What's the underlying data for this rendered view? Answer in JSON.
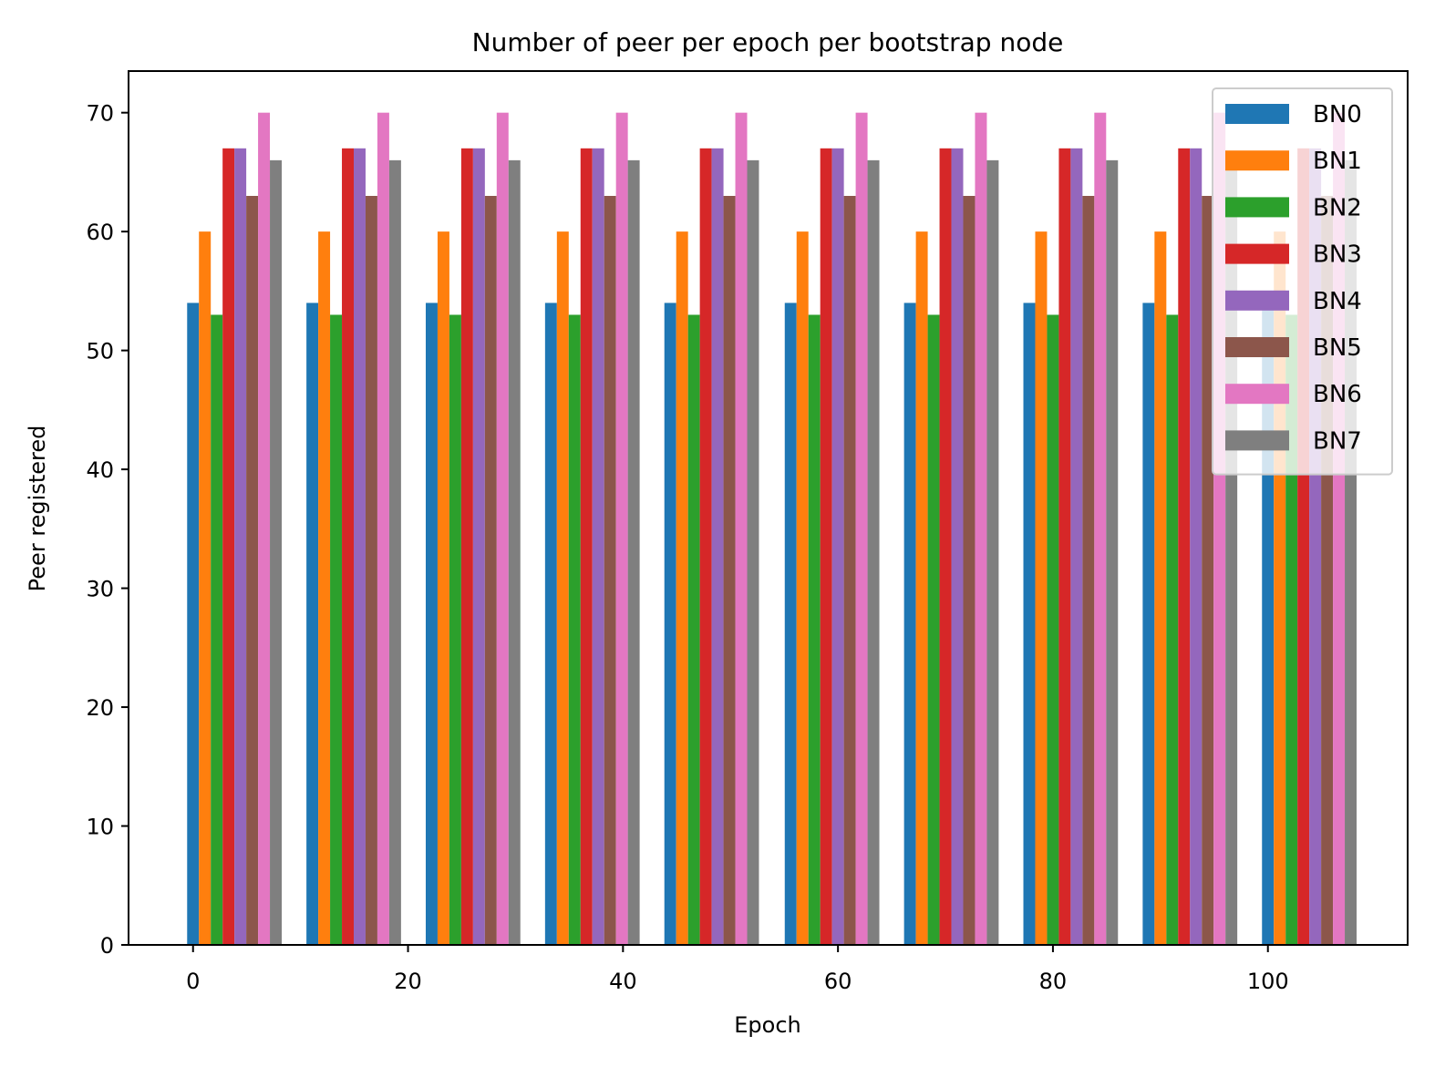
{
  "chart_data": {
    "type": "bar",
    "title": "Number of peer per epoch per bootstrap node",
    "xlabel": "Epoch",
    "ylabel": "Peer registered",
    "x_group_starts": [
      0,
      11.1,
      22.2,
      33.3,
      44.4,
      55.6,
      66.7,
      77.8,
      88.9,
      100
    ],
    "bar_width": 1.1,
    "xlim": [
      -6,
      113
    ],
    "ylim": [
      0,
      73.5
    ],
    "xticks": [
      0,
      20,
      40,
      60,
      80,
      100
    ],
    "yticks": [
      0,
      10,
      20,
      30,
      40,
      50,
      60,
      70
    ],
    "grid": false,
    "legend_position": "top-right",
    "series": [
      {
        "name": "BN0",
        "color": "#1f77b4",
        "values": [
          54,
          54,
          54,
          54,
          54,
          54,
          54,
          54,
          54,
          54
        ]
      },
      {
        "name": "BN1",
        "color": "#ff7f0e",
        "values": [
          60,
          60,
          60,
          60,
          60,
          60,
          60,
          60,
          60,
          60
        ]
      },
      {
        "name": "BN2",
        "color": "#2ca02c",
        "values": [
          53,
          53,
          53,
          53,
          53,
          53,
          53,
          53,
          53,
          53
        ]
      },
      {
        "name": "BN3",
        "color": "#d62728",
        "values": [
          67,
          67,
          67,
          67,
          67,
          67,
          67,
          67,
          67,
          67
        ]
      },
      {
        "name": "BN4",
        "color": "#9467bd",
        "values": [
          67,
          67,
          67,
          67,
          67,
          67,
          67,
          67,
          67,
          67
        ]
      },
      {
        "name": "BN5",
        "color": "#8c564b",
        "values": [
          63,
          63,
          63,
          63,
          63,
          63,
          63,
          63,
          63,
          63
        ]
      },
      {
        "name": "BN6",
        "color": "#e377c2",
        "values": [
          70,
          70,
          70,
          70,
          70,
          70,
          70,
          70,
          70,
          70
        ]
      },
      {
        "name": "BN7",
        "color": "#7f7f7f",
        "values": [
          66,
          66,
          66,
          66,
          66,
          66,
          66,
          66,
          66,
          66
        ]
      }
    ]
  }
}
